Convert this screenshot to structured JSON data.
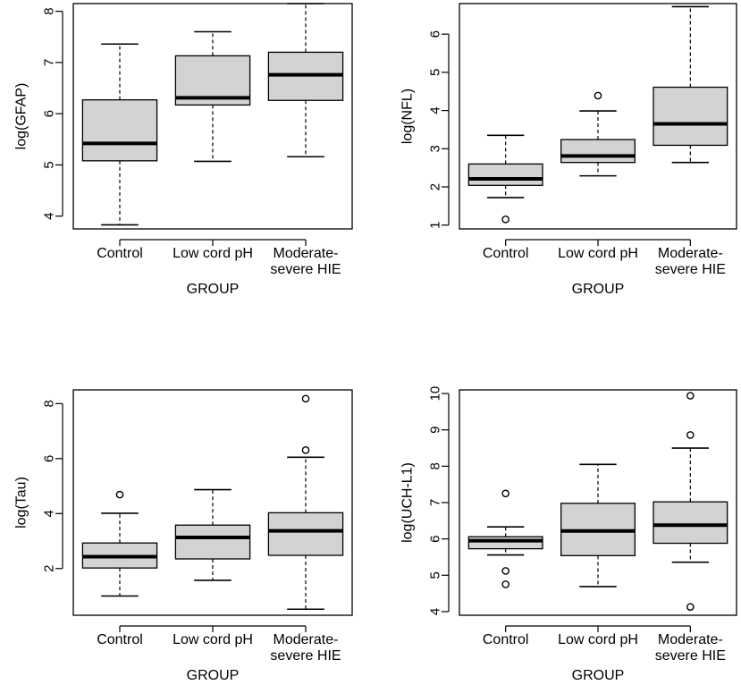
{
  "style": {
    "box_fill": "#d3d3d3",
    "line_color": "#000000",
    "background": "#ffffff"
  },
  "chart_data": [
    {
      "type": "boxplot",
      "title": "",
      "xlabel": "GROUP",
      "ylabel": "log(GFAP)",
      "ylim": [
        3.75,
        8.15
      ],
      "yticks": [
        4,
        5,
        6,
        7,
        8
      ],
      "categories": [
        "Control",
        "Low cord pH",
        "Moderate-\nsevere HIE"
      ],
      "boxes": [
        {
          "group": "Control",
          "whisker_low": 3.83,
          "q1": 5.08,
          "median": 5.42,
          "q3": 6.27,
          "whisker_high": 7.36,
          "outliers": []
        },
        {
          "group": "Low cord pH",
          "whisker_low": 5.07,
          "q1": 6.17,
          "median": 6.31,
          "q3": 7.13,
          "whisker_high": 7.6,
          "outliers": []
        },
        {
          "group": "Moderate-severe HIE",
          "whisker_low": 5.16,
          "q1": 6.26,
          "median": 6.76,
          "q3": 7.2,
          "whisker_high": 8.15,
          "outliers": []
        }
      ]
    },
    {
      "type": "boxplot",
      "title": "",
      "xlabel": "GROUP",
      "ylabel": "log(NFL)",
      "ylim": [
        0.9,
        6.8
      ],
      "yticks": [
        1,
        2,
        3,
        4,
        5,
        6
      ],
      "categories": [
        "Control",
        "Low cord pH",
        "Moderate-\nsevere HIE"
      ],
      "boxes": [
        {
          "group": "Control",
          "whisker_low": 1.72,
          "q1": 2.04,
          "median": 2.21,
          "q3": 2.6,
          "whisker_high": 3.35,
          "outliers": [
            1.15
          ]
        },
        {
          "group": "Low cord pH",
          "whisker_low": 2.29,
          "q1": 2.64,
          "median": 2.81,
          "q3": 3.24,
          "whisker_high": 3.99,
          "outliers": [
            4.39
          ]
        },
        {
          "group": "Moderate-severe HIE",
          "whisker_low": 2.64,
          "q1": 3.09,
          "median": 3.65,
          "q3": 4.61,
          "whisker_high": 6.72,
          "outliers": []
        }
      ]
    },
    {
      "type": "boxplot",
      "title": "",
      "xlabel": "GROUP",
      "ylabel": "log(Tau)",
      "ylim": [
        0.3,
        8.5
      ],
      "yticks": [
        2,
        4,
        6,
        8
      ],
      "categories": [
        "Control",
        "Low cord pH",
        "Moderate-\nsevere HIE"
      ],
      "boxes": [
        {
          "group": "Control",
          "whisker_low": 1.0,
          "q1": 2.02,
          "median": 2.43,
          "q3": 2.93,
          "whisker_high": 4.01,
          "outliers": [
            4.69
          ]
        },
        {
          "group": "Low cord pH",
          "whisker_low": 1.57,
          "q1": 2.35,
          "median": 3.13,
          "q3": 3.58,
          "whisker_high": 4.87,
          "outliers": []
        },
        {
          "group": "Moderate-severe HIE",
          "whisker_low": 0.52,
          "q1": 2.48,
          "median": 3.37,
          "q3": 4.03,
          "whisker_high": 6.05,
          "outliers": [
            6.31,
            8.18
          ]
        }
      ]
    },
    {
      "type": "boxplot",
      "title": "",
      "xlabel": "GROUP",
      "ylabel": "log(UCH-L1)",
      "ylim": [
        3.9,
        10.1
      ],
      "yticks": [
        4,
        5,
        6,
        7,
        8,
        9,
        10
      ],
      "categories": [
        "Control",
        "Low cord pH",
        "Moderate-\nsevere HIE"
      ],
      "boxes": [
        {
          "group": "Control",
          "whisker_low": 5.56,
          "q1": 5.73,
          "median": 5.95,
          "q3": 6.06,
          "whisker_high": 6.33,
          "outliers": [
            7.25,
            5.12,
            4.75
          ]
        },
        {
          "group": "Low cord pH",
          "whisker_low": 4.69,
          "q1": 5.54,
          "median": 6.22,
          "q3": 6.98,
          "whisker_high": 8.05,
          "outliers": []
        },
        {
          "group": "Moderate-severe HIE",
          "whisker_low": 5.36,
          "q1": 5.88,
          "median": 6.38,
          "q3": 7.02,
          "whisker_high": 8.5,
          "outliers": [
            8.86,
            9.94,
            4.13
          ]
        }
      ]
    }
  ]
}
